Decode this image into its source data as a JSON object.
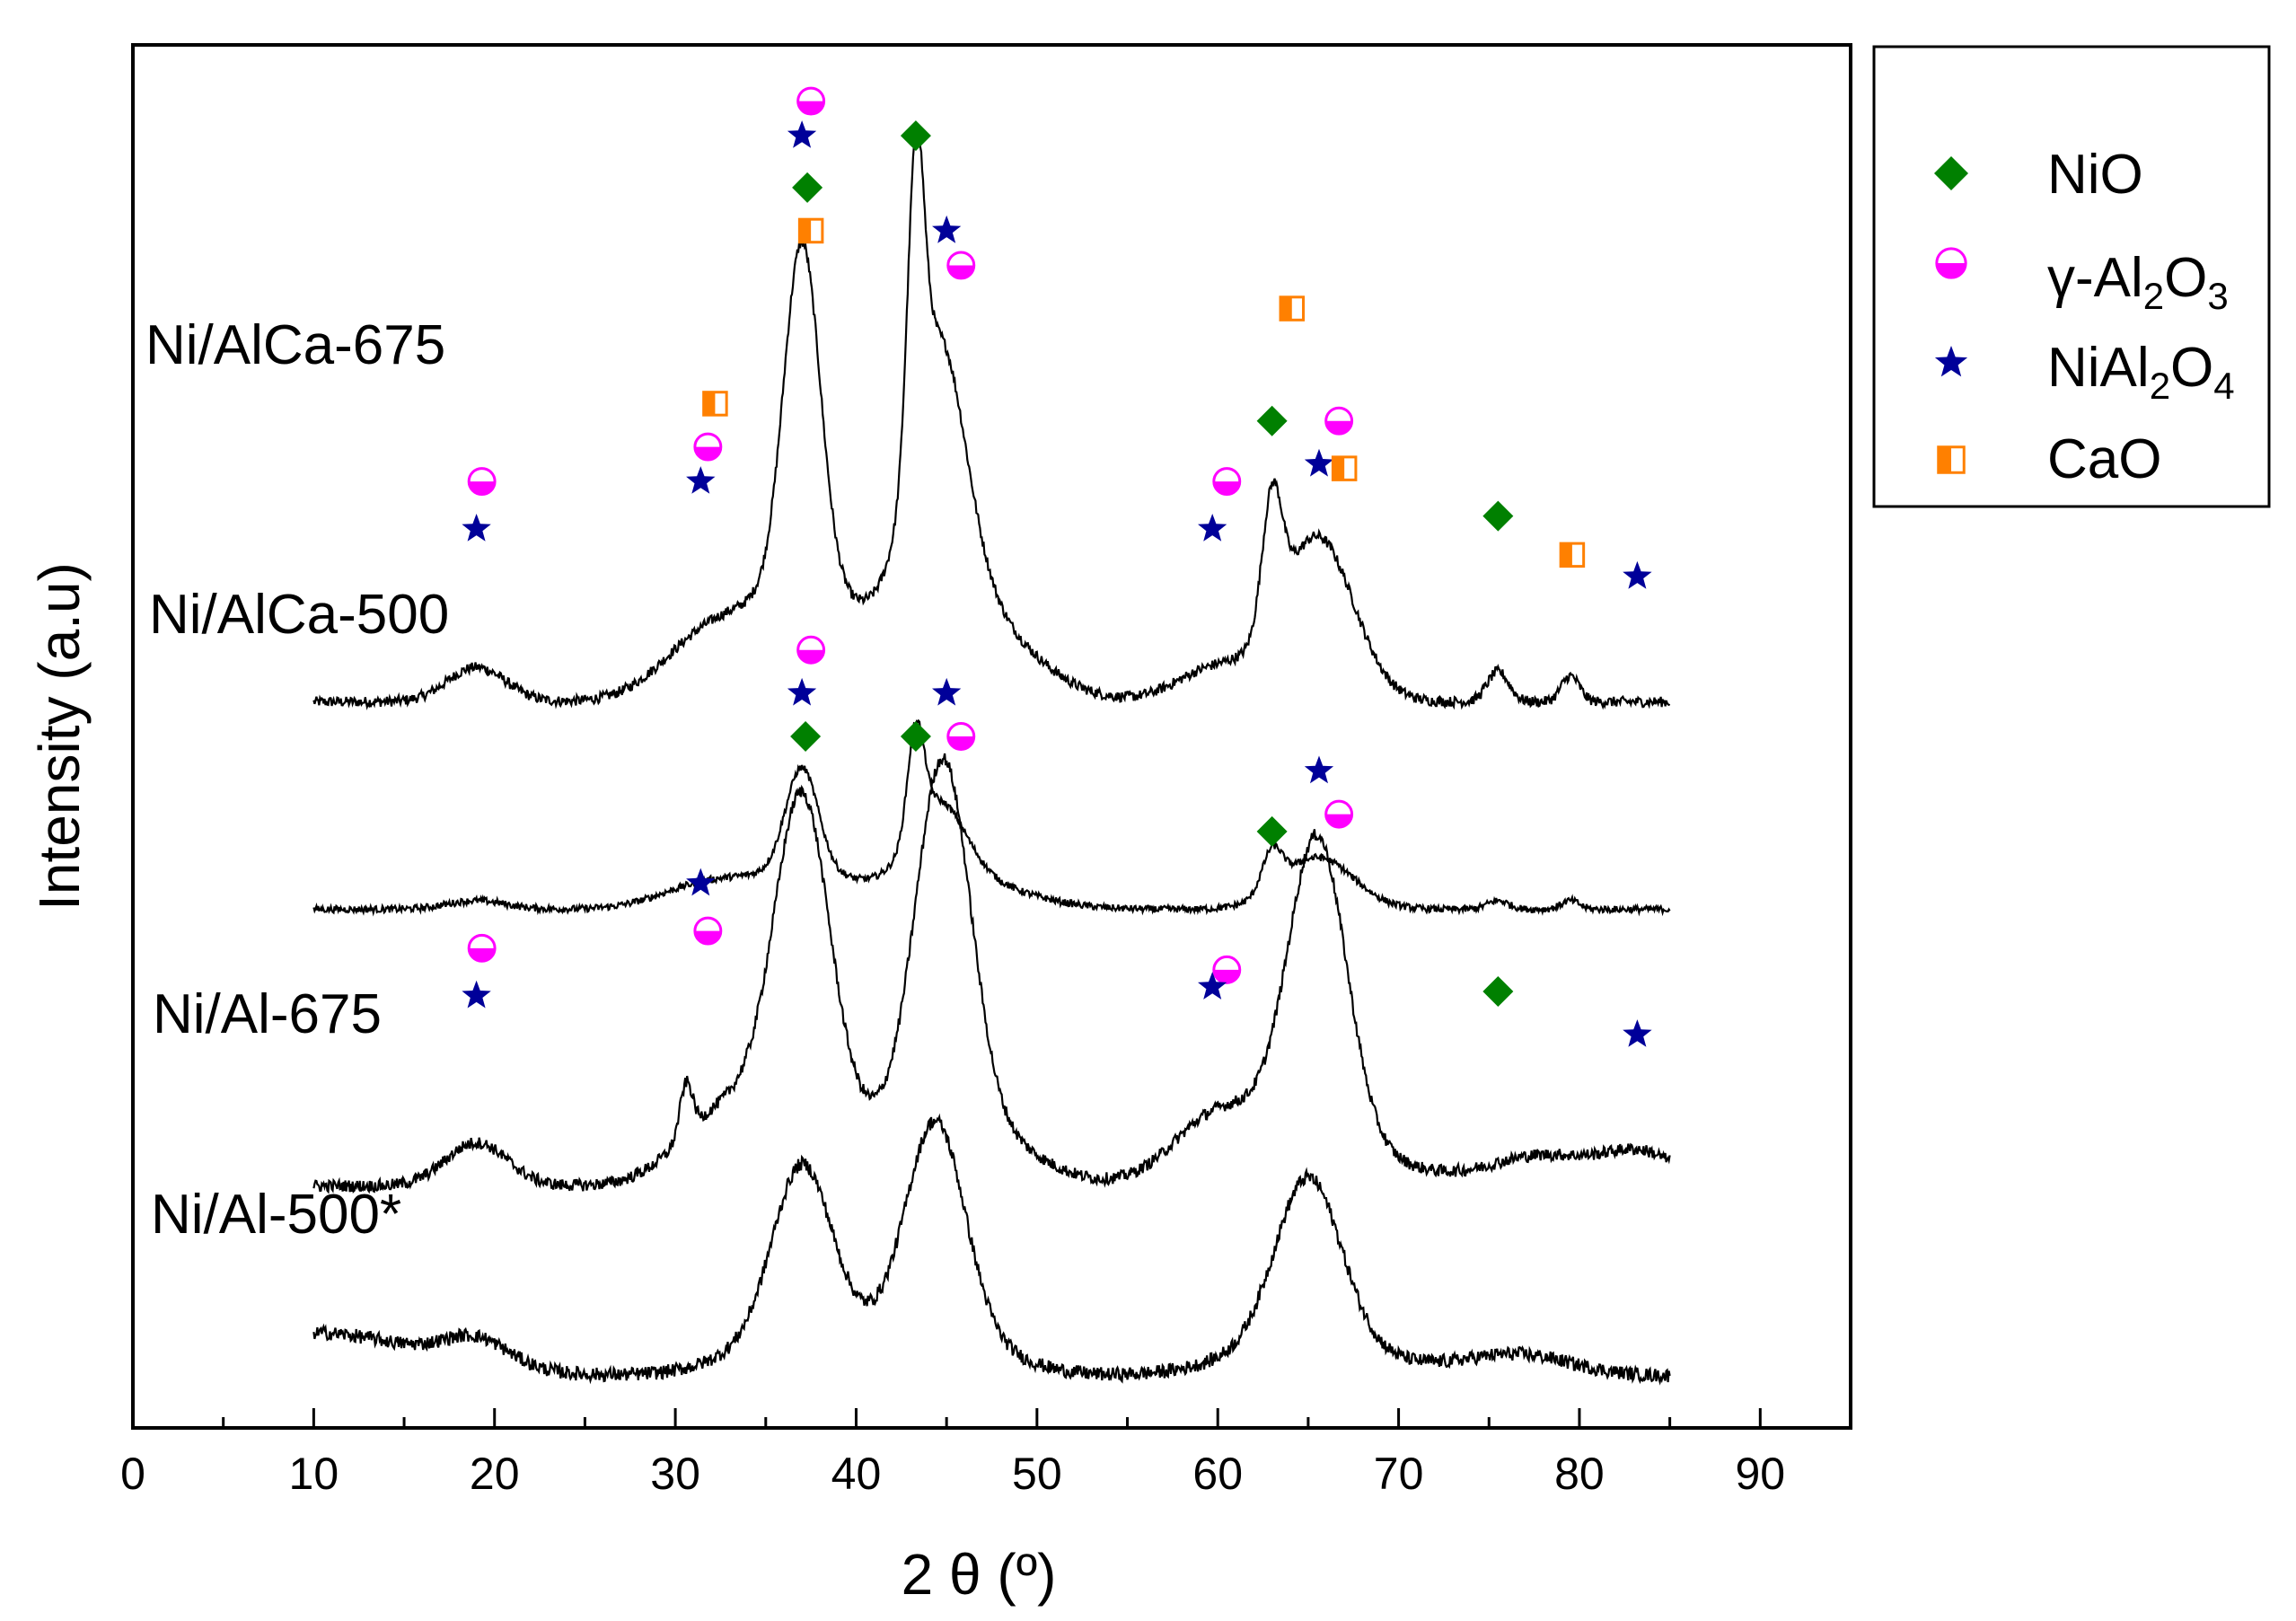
{
  "chart_data": {
    "type": "line",
    "title": "",
    "xlabel": "2 θ (º)",
    "ylabel": "Intensity (a.u)",
    "xlim": [
      0,
      95
    ],
    "xticks": [
      0,
      10,
      20,
      30,
      40,
      50,
      60,
      70,
      80,
      90
    ],
    "xtick_labels": [
      "0",
      "10",
      "20",
      "30",
      "40",
      "50",
      "60",
      "70",
      "80",
      "90"
    ],
    "y_ticks_shown": false,
    "legend_position": "outside-top-right",
    "legend": [
      {
        "key": "NiO",
        "label": "NiO",
        "marker": "diamond",
        "color": "#008000"
      },
      {
        "key": "gAl2O3",
        "label": "γ-Al2O3",
        "label_parts": [
          "γ-Al",
          "2",
          "O",
          "3"
        ],
        "marker": "half-circle",
        "color": "#ff00ff"
      },
      {
        "key": "NiAl2O4",
        "label": "NiAl2O4",
        "label_parts": [
          "NiAl",
          "2",
          "O",
          "4"
        ],
        "marker": "star",
        "color": "#000099"
      },
      {
        "key": "CaO",
        "label": "CaO",
        "marker": "half-square",
        "color": "#ff8000"
      }
    ],
    "series": [
      {
        "name": "Ni/AlCa-675",
        "baseline": 8.4,
        "slope": 0,
        "noise": 0.06,
        "broad": [
          {
            "c": 19,
            "h": 0.4,
            "w": 1.6
          },
          {
            "c": 31.5,
            "h": 0.6,
            "w": 2.5
          },
          {
            "c": 37,
            "h": 4.0,
            "w": 1.0
          },
          {
            "c": 37,
            "h": 1.2,
            "w": 3.2
          },
          {
            "c": 43.3,
            "h": 3.3,
            "w": 0.45
          },
          {
            "c": 44.5,
            "h": 3.0,
            "w": 1.5
          },
          {
            "c": 45.5,
            "h": 1.2,
            "w": 3.5
          },
          {
            "c": 60,
            "h": 0.4,
            "w": 2.2
          },
          {
            "c": 63,
            "h": 1.5,
            "w": 0.55
          },
          {
            "c": 65.5,
            "h": 1.9,
            "w": 2.0
          },
          {
            "c": 75.5,
            "h": 0.35,
            "w": 0.6
          },
          {
            "c": 79.5,
            "h": 0.3,
            "w": 0.5
          }
        ],
        "markers": [
          {
            "kind": "NiO",
            "x": 37.3,
            "y": 14.35
          },
          {
            "kind": "NiO",
            "x": 43.3,
            "y": 14.95
          },
          {
            "kind": "NiO",
            "x": 63.0,
            "y": 11.65
          },
          {
            "kind": "NiO",
            "x": 75.5,
            "y": 10.55
          },
          {
            "kind": "gAl2O3",
            "x": 19.3,
            "y": 10.95
          },
          {
            "kind": "gAl2O3",
            "x": 31.8,
            "y": 11.35
          },
          {
            "kind": "gAl2O3",
            "x": 37.5,
            "y": 15.35
          },
          {
            "kind": "gAl2O3",
            "x": 45.8,
            "y": 13.45
          },
          {
            "kind": "gAl2O3",
            "x": 60.5,
            "y": 10.95
          },
          {
            "kind": "gAl2O3",
            "x": 66.7,
            "y": 11.65
          },
          {
            "kind": "NiAl2O4",
            "x": 19.0,
            "y": 10.4
          },
          {
            "kind": "NiAl2O4",
            "x": 31.4,
            "y": 10.95
          },
          {
            "kind": "NiAl2O4",
            "x": 37.0,
            "y": 14.95
          },
          {
            "kind": "NiAl2O4",
            "x": 45.0,
            "y": 13.85
          },
          {
            "kind": "NiAl2O4",
            "x": 59.7,
            "y": 10.4
          },
          {
            "kind": "NiAl2O4",
            "x": 65.6,
            "y": 11.15
          },
          {
            "kind": "NiAl2O4",
            "x": 83.2,
            "y": 9.85
          },
          {
            "kind": "CaO",
            "x": 32.2,
            "y": 11.85
          },
          {
            "kind": "CaO",
            "x": 37.5,
            "y": 13.85
          },
          {
            "kind": "CaO",
            "x": 64.1,
            "y": 12.95
          },
          {
            "kind": "CaO",
            "x": 67.0,
            "y": 11.1
          },
          {
            "kind": "CaO",
            "x": 79.6,
            "y": 10.1
          }
        ]
      },
      {
        "name": "Ni/AlCa-500",
        "baseline": 6.0,
        "slope": 0,
        "noise": 0.04,
        "broad": [
          {
            "c": 19,
            "h": 0.1,
            "w": 1.6
          },
          {
            "c": 31.5,
            "h": 0.25,
            "w": 2.5
          },
          {
            "c": 37,
            "h": 1.2,
            "w": 0.9
          },
          {
            "c": 37,
            "h": 0.4,
            "w": 3.0
          },
          {
            "c": 43.3,
            "h": 1.2,
            "w": 0.45
          },
          {
            "c": 44.5,
            "h": 0.9,
            "w": 1.5
          },
          {
            "c": 45.5,
            "h": 0.35,
            "w": 3.5
          },
          {
            "c": 63,
            "h": 0.45,
            "w": 0.55
          },
          {
            "c": 65.5,
            "h": 0.6,
            "w": 2.0
          },
          {
            "c": 75.5,
            "h": 0.1,
            "w": 0.6
          },
          {
            "c": 79.5,
            "h": 0.1,
            "w": 0.5
          }
        ],
        "markers": []
      },
      {
        "name": "Ni/Al-675",
        "baseline": 2.8,
        "slope": 0,
        "noise": 0.07,
        "broad": [
          {
            "c": 19,
            "h": 0.5,
            "w": 1.7
          },
          {
            "c": 30.6,
            "h": 0.6,
            "w": 0.35
          },
          {
            "c": 32.5,
            "h": 0.6,
            "w": 2.5
          },
          {
            "c": 37,
            "h": 3.6,
            "w": 1.5
          },
          {
            "c": 37,
            "h": 0.8,
            "w": 3.5
          },
          {
            "c": 44.8,
            "h": 4.1,
            "w": 1.5
          },
          {
            "c": 45.5,
            "h": 0.8,
            "w": 3.5
          },
          {
            "c": 60,
            "h": 0.7,
            "w": 2.5
          },
          {
            "c": 65.5,
            "h": 3.5,
            "w": 1.6
          },
          {
            "c": 65.5,
            "h": 0.5,
            "w": 4.0
          },
          {
            "c": 78,
            "h": 0.35,
            "w": 3.0
          },
          {
            "c": 83.5,
            "h": 0.35,
            "w": 2.0
          }
        ],
        "markers": [
          {
            "kind": "NiO",
            "x": 37.2,
            "y": 8.0
          },
          {
            "kind": "NiO",
            "x": 43.3,
            "y": 8.0
          },
          {
            "kind": "NiO",
            "x": 63.0,
            "y": 6.9
          },
          {
            "kind": "NiO",
            "x": 75.5,
            "y": 5.05
          },
          {
            "kind": "gAl2O3",
            "x": 19.3,
            "y": 5.55
          },
          {
            "kind": "gAl2O3",
            "x": 31.8,
            "y": 5.75
          },
          {
            "kind": "gAl2O3",
            "x": 37.5,
            "y": 9.0
          },
          {
            "kind": "gAl2O3",
            "x": 45.8,
            "y": 8.0
          },
          {
            "kind": "gAl2O3",
            "x": 60.5,
            "y": 5.3
          },
          {
            "kind": "gAl2O3",
            "x": 66.7,
            "y": 7.1
          },
          {
            "kind": "NiAl2O4",
            "x": 19.0,
            "y": 5.0
          },
          {
            "kind": "NiAl2O4",
            "x": 31.4,
            "y": 6.3
          },
          {
            "kind": "NiAl2O4",
            "x": 37.0,
            "y": 8.5
          },
          {
            "kind": "NiAl2O4",
            "x": 45.0,
            "y": 8.5
          },
          {
            "kind": "NiAl2O4",
            "x": 59.7,
            "y": 5.1
          },
          {
            "kind": "NiAl2O4",
            "x": 65.6,
            "y": 7.6
          },
          {
            "kind": "NiAl2O4",
            "x": 83.2,
            "y": 4.55
          }
        ]
      },
      {
        "name": "Ni/Al-500*",
        "baseline": 0.6,
        "slope": 0,
        "noise": 0.08,
        "broad": [
          {
            "c": 10,
            "h": 0.5,
            "w": 6
          },
          {
            "c": 19,
            "h": 0.3,
            "w": 1.8
          },
          {
            "c": 37,
            "h": 1.9,
            "w": 1.6
          },
          {
            "c": 37,
            "h": 0.5,
            "w": 3.5
          },
          {
            "c": 44.4,
            "h": 2.4,
            "w": 1.6
          },
          {
            "c": 44.4,
            "h": 0.5,
            "w": 3.5
          },
          {
            "c": 65,
            "h": 1.9,
            "w": 1.8
          },
          {
            "c": 65,
            "h": 0.4,
            "w": 4.0
          },
          {
            "c": 76.5,
            "h": 0.25,
            "w": 3.0
          }
        ],
        "markers": []
      }
    ],
    "xrange_data": [
      10,
      85
    ]
  },
  "samples": {
    "s1": "Ni/AlCa-675",
    "s2": "Ni/AlCa-500",
    "s3": "Ni/Al-675",
    "s4": "Ni/Al-500*"
  },
  "axes": {
    "xlabel_main": "2 θ (º)",
    "ylabel": "Intensity (a.u)"
  },
  "legend_labels": {
    "nio": "NiO",
    "gal2o3_a": "γ-Al",
    "gal2o3_b": "2",
    "gal2o3_c": "O",
    "gal2o3_d": "3",
    "nial2o4_a": "NiAl",
    "nial2o4_b": "2",
    "nial2o4_c": "O",
    "nial2o4_d": "4",
    "cao": "CaO"
  }
}
